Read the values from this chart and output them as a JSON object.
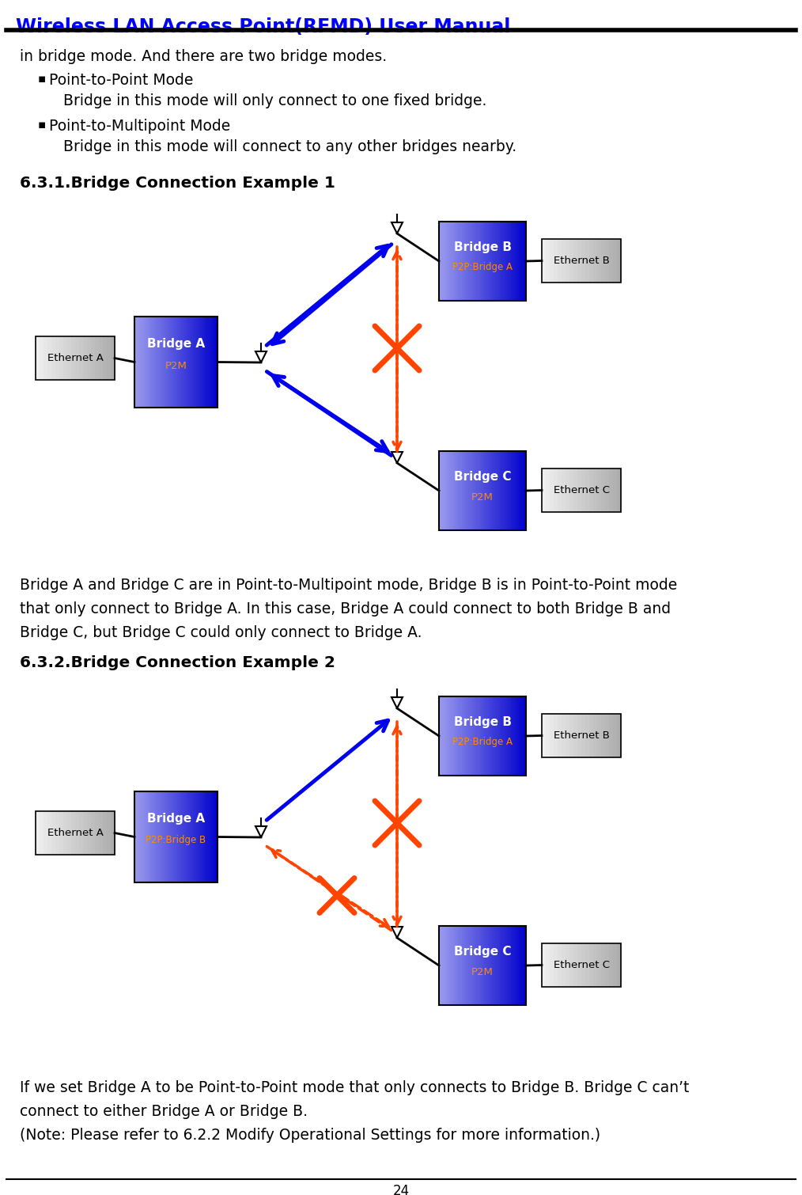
{
  "title": "Wireless LAN Access Point(RFMD) User Manual",
  "title_color": "#0000FF",
  "bg_color": "#FFFFFF",
  "intro_text": "in bridge mode. And there are two bridge modes.",
  "bullet1_title": "Point-to-Point Mode",
  "bullet1_desc": "Bridge in this mode will only connect to one fixed bridge.",
  "bullet2_title": "Point-to-Multipoint Mode",
  "bullet2_desc": "Bridge in this mode will connect to any other bridges nearby.",
  "section1_title": "6.3.1.",
  "section1_rest": "Bridge Connection Example 1",
  "section2_title": "6.3.2.",
  "section2_rest": "Bridge Connection Example 2",
  "desc1_lines": [
    "Bridge A and Bridge C are in Point-to-Multipoint mode, Bridge B is in Point-to-Point mode",
    "that only connect to Bridge A. In this case, Bridge A could connect to both Bridge B and",
    "Bridge C, but Bridge C could only connect to Bridge A."
  ],
  "desc2_lines": [
    "If we set Bridge A to be Point-to-Point mode that only connects to Bridge B. Bridge C can’t",
    "connect to either Bridge A or Bridge B.",
    "(Note: Please refer to 6.2.2 Modify Operational Settings for more information.)"
  ],
  "page_num": "24",
  "blue_dark": "#0000EE",
  "blue_light": "#9999FF",
  "gray_dark": "#AAAAAA",
  "gray_light": "#EEEEEE",
  "arrow_blue": "#0000EE",
  "arrow_red": "#FF4400",
  "white": "#FFFFFF",
  "orange": "#FF8C00",
  "black": "#000000"
}
